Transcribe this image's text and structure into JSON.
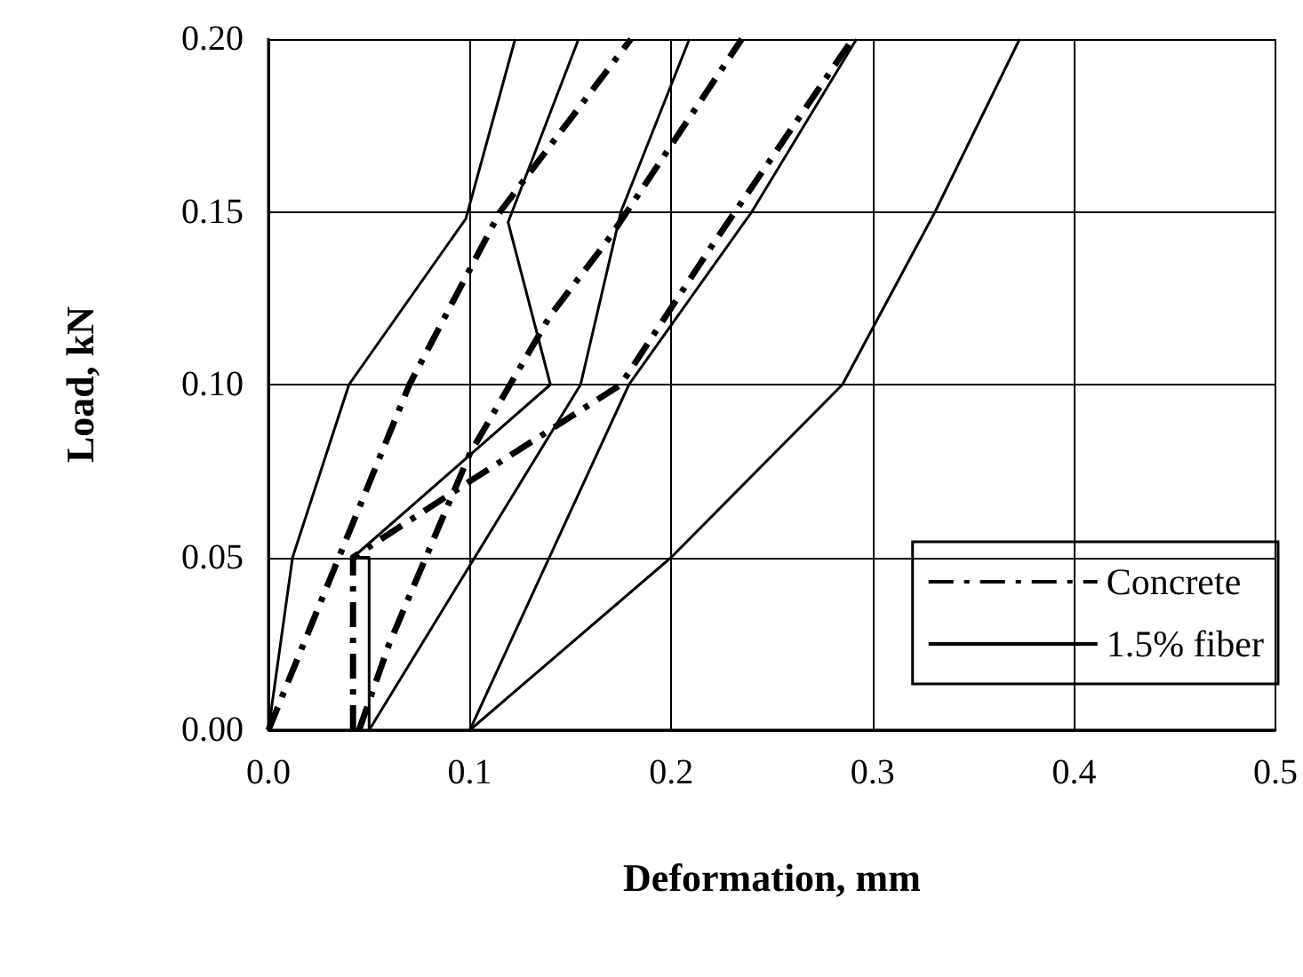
{
  "chart_data": {
    "type": "line",
    "xlabel": "Deformation, mm",
    "ylabel": "Load, kN",
    "xlim": [
      0,
      0.5
    ],
    "ylim": [
      0,
      0.2
    ],
    "xticks": [
      {
        "value": 0,
        "label": "0.0"
      },
      0.1,
      0.2,
      0.3,
      0.4,
      0.5
    ],
    "yticks": [
      {
        "value": 0,
        "label": "0.00"
      },
      0.05,
      {
        "value": 0.1,
        "label": "0.10"
      },
      0.15,
      {
        "value": 0.2,
        "label": "0.20"
      }
    ],
    "grid": true,
    "legend": "bottom right",
    "marker": "none",
    "series": [
      {
        "name": "Concrete",
        "color": "#000000",
        "line_style": "dashed",
        "x": [
          0,
          0.035,
          0.07,
          0.115,
          0.18
        ],
        "values": [
          0,
          0.05,
          0.1,
          0.15,
          0.2
        ]
      },
      {
        "color": "#000000",
        "line_style": "dashed",
        "x": [
          0.042,
          0.042,
          0.1,
          0.175,
          0.22,
          0.29
        ],
        "values": [
          0,
          0.05,
          0.072,
          0.1,
          0.14,
          0.2
        ]
      },
      {
        "color": "#000000",
        "line_style": "dashed",
        "x": [
          0.045,
          0.06,
          0.1,
          0.14,
          0.17,
          0.235
        ],
        "values": [
          0,
          0.025,
          0.08,
          0.12,
          0.143,
          0.2
        ]
      },
      {
        "name": "1.5% fiber",
        "color": "#000000",
        "line_style": "solid",
        "x": [
          0,
          0.012,
          0.04,
          0.098,
          0.1225
        ],
        "values": [
          0,
          0.05,
          0.1,
          0.148,
          0.2
        ]
      },
      {
        "color": "#000000",
        "line_style": "solid",
        "x": [
          0.05,
          0.05,
          0.042,
          0.14,
          0.119,
          0.154
        ],
        "values": [
          0,
          0.05,
          0.05,
          0.1,
          0.147,
          0.2
        ]
      },
      {
        "color": "#000000",
        "line_style": "solid",
        "x": [
          0.05,
          0.155,
          0.175,
          0.209
        ],
        "values": [
          0,
          0.1,
          0.15,
          0.2
        ]
      },
      {
        "color": "#000000",
        "line_style": "solid",
        "x": [
          0.1,
          0.179,
          0.24,
          0.292
        ],
        "values": [
          0,
          0.1,
          0.15,
          0.2
        ]
      },
      {
        "color": "#000000",
        "line_style": "solid",
        "x": [
          0.1,
          0.2,
          0.285,
          0.331,
          0.373
        ],
        "values": [
          0,
          0.05,
          0.1,
          0.15,
          0.2
        ]
      }
    ]
  }
}
